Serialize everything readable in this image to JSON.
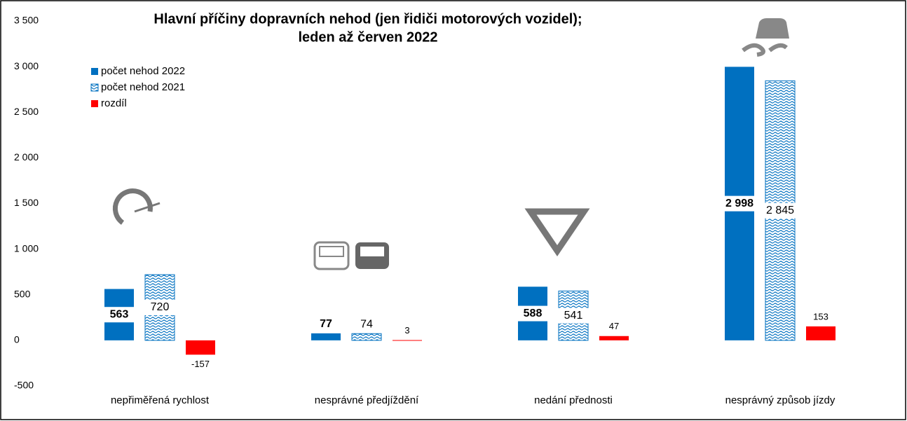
{
  "chart_data": {
    "type": "bar",
    "title": [
      "Hlavní příčiny dopravních nehod (jen řidiči motorových vozidel);",
      "leden až červen 2022"
    ],
    "categories": [
      "nepřiměřená rychlost",
      "nesprávné předjíždění",
      "nedání přednosti",
      "nesprávný způsob jízdy"
    ],
    "series": [
      {
        "name": "počet nehod 2022",
        "color": "#0070c0",
        "hatch": false,
        "values": [
          563,
          77,
          588,
          2998
        ],
        "value_labels": [
          "563",
          "77",
          "588",
          "2 998"
        ]
      },
      {
        "name": "počet nehod 2021",
        "color": "#0070c0",
        "hatch": true,
        "values": [
          720,
          74,
          541,
          2845
        ],
        "value_labels": [
          "720",
          "74",
          "541",
          "2 845"
        ]
      },
      {
        "name": "rozdíl",
        "color": "#ff0000",
        "hatch": false,
        "values": [
          -157,
          3,
          47,
          153
        ]
      }
    ],
    "ylim": [
      -500,
      3500
    ],
    "yticks": [
      -500,
      0,
      500,
      {
        "value": 1000,
        "label": "1 000"
      },
      {
        "value": 1500,
        "label": "1 500"
      },
      {
        "value": 2000,
        "label": "2 000"
      },
      {
        "value": 2500,
        "label": "2 500"
      },
      {
        "value": 3000,
        "label": "3 000"
      },
      {
        "value": 3500,
        "label": "3 500"
      }
    ],
    "grid": false,
    "legend": "upper left"
  }
}
